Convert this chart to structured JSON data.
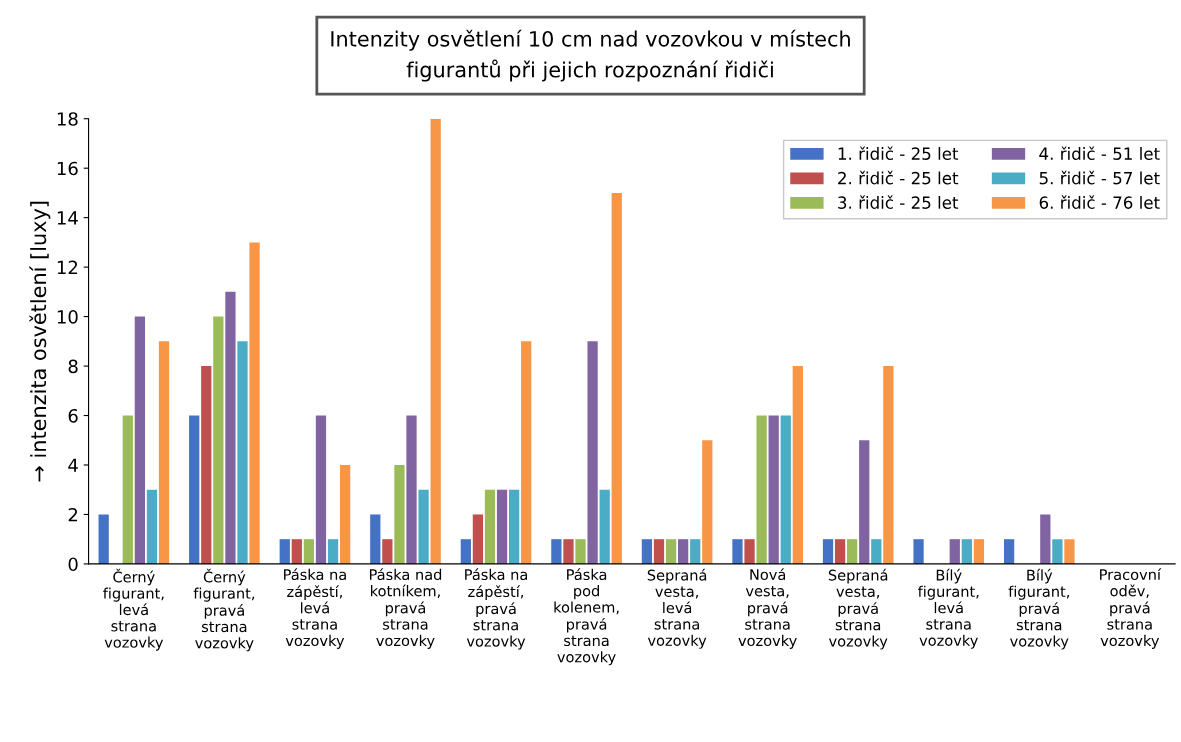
{
  "chart_data": {
    "type": "bar",
    "title": "Intenzity osvětlení 10 cm nad vozovkou v místech\nfigurantů při jejich rozpoznání řidiči",
    "ylabel": "→ intenzita osvětlení [luxy]",
    "categories": [
      "Černý\nfigurant,\nlevá\nstrana\nvozovky",
      "Černý\nfigurant,\npravá\nstrana\nvozovky",
      "Páska na\nzápěstí,\nlevá\nstrana\nvozovky",
      "Páska nad\nkotníkem,\npravá\nstrana\nvozovky",
      "Páska na\nzápěstí,\npravá\nstrana\nvozovky",
      "Páska\npod\nkolenem,\npravá\nstrana\nvozovky",
      "Sepraná\nvesta,\nlevá\nstrana\nvozovky",
      "Nová\nvesta,\npravá\nstrana\nvozovky",
      "Sepraná\nvesta,\npravá\nstrana\nvozovky",
      "Bílý\nfigurant,\nlevá\nstrana\nvozovky",
      "Bílý\nfigurant,\npravá\nstrana\nvozovky",
      "Pracovní\noděv,\npravá\nstrana\nvozovky"
    ],
    "series": [
      {
        "name": "1. řidič - 25 let",
        "color": "#4472c4",
        "values": [
          2,
          6,
          1,
          2,
          1,
          1,
          1,
          1,
          1,
          1,
          1,
          0
        ]
      },
      {
        "name": "2. řidič - 25 let",
        "color": "#c0504d",
        "values": [
          0,
          8,
          1,
          1,
          2,
          1,
          1,
          1,
          1,
          0,
          0,
          0
        ]
      },
      {
        "name": "3. řidič - 25 let",
        "color": "#9bbb59",
        "values": [
          6,
          10,
          1,
          4,
          3,
          1,
          1,
          6,
          1,
          0,
          0,
          0
        ]
      },
      {
        "name": "4. řidič - 51 let",
        "color": "#8064a2",
        "values": [
          10,
          11,
          6,
          6,
          3,
          9,
          1,
          6,
          5,
          1,
          2,
          0
        ]
      },
      {
        "name": "5. řidič - 57 let",
        "color": "#4bacc6",
        "values": [
          3,
          9,
          1,
          3,
          3,
          3,
          1,
          6,
          1,
          1,
          1,
          0
        ]
      },
      {
        "name": "6. řidič - 76 let",
        "color": "#f79646",
        "values": [
          9,
          13,
          4,
          18,
          9,
          15,
          5,
          8,
          8,
          1,
          1,
          0
        ]
      }
    ],
    "ylim": [
      0,
      18
    ],
    "yticks": [
      0,
      2,
      4,
      6,
      8,
      10,
      12,
      14,
      16,
      18
    ],
    "grid": false,
    "legend": "top right"
  }
}
